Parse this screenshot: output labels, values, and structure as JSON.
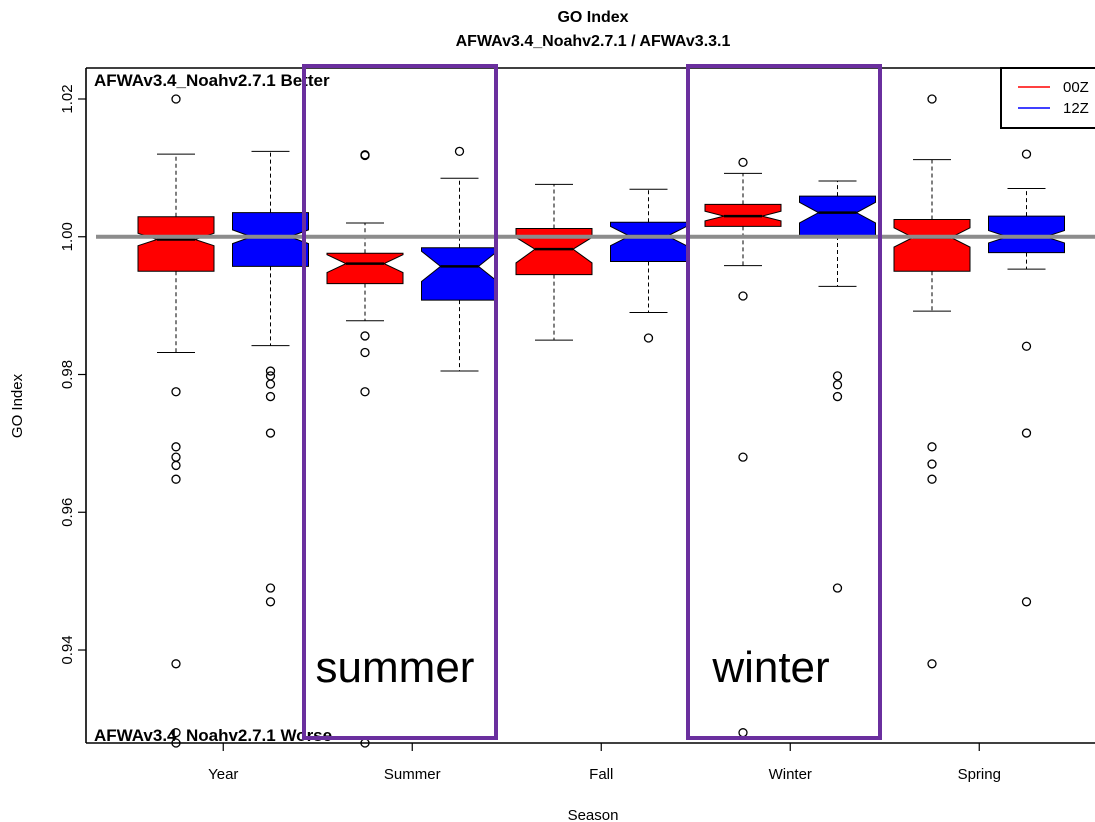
{
  "chart_data": {
    "type": "boxplot",
    "title": "GO Index",
    "subtitle": "AFWAv3.4_Noahv2.7.1 / AFWAv3.3.1",
    "xlabel": "Season",
    "ylabel": "GO Index",
    "categories": [
      "Year",
      "Summer",
      "Fall",
      "Winter",
      "Spring"
    ],
    "ylim": [
      0.9265,
      1.0245
    ],
    "yticks": [
      0.94,
      0.96,
      0.98,
      1.0,
      1.02
    ],
    "ytick_labels": [
      "0.94",
      "0.96",
      "0.98",
      "1.00",
      "1.02"
    ],
    "reference_line": 1.0,
    "corner_labels": {
      "top": "AFWAv3.4_Noahv2.7.1 Better",
      "bottom": "AFWAv3.4_Noahv2.7.1 Worse"
    },
    "highlight_labels": [
      "summer",
      "winter"
    ],
    "legend": {
      "position": "top-right"
    },
    "series": [
      {
        "name": "00Z",
        "color": "#ff0000",
        "boxes": [
          {
            "category": "Year",
            "whisker_low": 0.9832,
            "q1": 0.995,
            "notch_low": 0.9987,
            "median": 0.9996,
            "notch_high": 1.0005,
            "q3": 1.0029,
            "whisker_high": 1.012,
            "outliers": [
              1.02,
              0.9775,
              0.9695,
              0.968,
              0.9668,
              0.9648,
              0.938,
              0.928,
              0.9265
            ]
          },
          {
            "category": "Summer",
            "whisker_low": 0.9878,
            "q1": 0.9932,
            "notch_low": 0.9948,
            "median": 0.9961,
            "notch_high": 0.9974,
            "q3": 0.9976,
            "whisker_high": 1.002,
            "outliers": [
              1.0119,
              1.0118,
              0.9856,
              0.9832,
              0.9775,
              0.9265
            ]
          },
          {
            "category": "Fall",
            "whisker_low": 0.985,
            "q1": 0.9945,
            "notch_low": 0.9962,
            "median": 0.9982,
            "notch_high": 0.9999,
            "q3": 1.0012,
            "whisker_high": 1.0076,
            "outliers": []
          },
          {
            "category": "Winter",
            "whisker_low": 0.9958,
            "q1": 1.0015,
            "notch_low": 1.0023,
            "median": 1.003,
            "notch_high": 1.0037,
            "q3": 1.0047,
            "whisker_high": 1.0092,
            "outliers": [
              1.0108,
              0.9914,
              0.968,
              0.928
            ]
          },
          {
            "category": "Spring",
            "whisker_low": 0.9892,
            "q1": 0.995,
            "notch_low": 0.9985,
            "median": 0.9999,
            "notch_high": 1.0013,
            "q3": 1.0025,
            "whisker_high": 1.0112,
            "outliers": [
              1.02,
              0.9695,
              0.967,
              0.9648,
              0.938
            ]
          }
        ]
      },
      {
        "name": "12Z",
        "color": "#0000ff",
        "boxes": [
          {
            "category": "Year",
            "whisker_low": 0.9842,
            "q1": 0.9957,
            "notch_low": 0.999,
            "median": 1.0,
            "notch_high": 1.001,
            "q3": 1.0035,
            "whisker_high": 1.0124,
            "outliers": [
              0.9805,
              0.9798,
              0.9786,
              0.9768,
              0.9715,
              0.949,
              0.947
            ]
          },
          {
            "category": "Summer",
            "whisker_low": 0.9805,
            "q1": 0.9908,
            "notch_low": 0.9935,
            "median": 0.9957,
            "notch_high": 0.9979,
            "q3": 0.9984,
            "whisker_high": 1.0085,
            "outliers": [
              1.0124
            ]
          },
          {
            "category": "Fall",
            "whisker_low": 0.989,
            "q1": 0.9964,
            "notch_low": 0.9987,
            "median": 1.0001,
            "notch_high": 1.0015,
            "q3": 1.0021,
            "whisker_high": 1.0069,
            "outliers": [
              0.9853
            ]
          },
          {
            "category": "Winter",
            "whisker_low": 0.9928,
            "q1": 1.0001,
            "notch_low": 1.002,
            "median": 1.0035,
            "notch_high": 1.005,
            "q3": 1.0059,
            "whisker_high": 1.0081,
            "outliers": [
              0.9798,
              0.9785,
              0.9768,
              0.949
            ]
          },
          {
            "category": "Spring",
            "whisker_low": 0.9953,
            "q1": 0.9977,
            "notch_low": 0.9991,
            "median": 1.0,
            "notch_high": 1.0009,
            "q3": 1.003,
            "whisker_high": 1.007,
            "outliers": [
              1.012,
              0.9841,
              0.9715,
              0.947
            ]
          }
        ]
      }
    ]
  }
}
